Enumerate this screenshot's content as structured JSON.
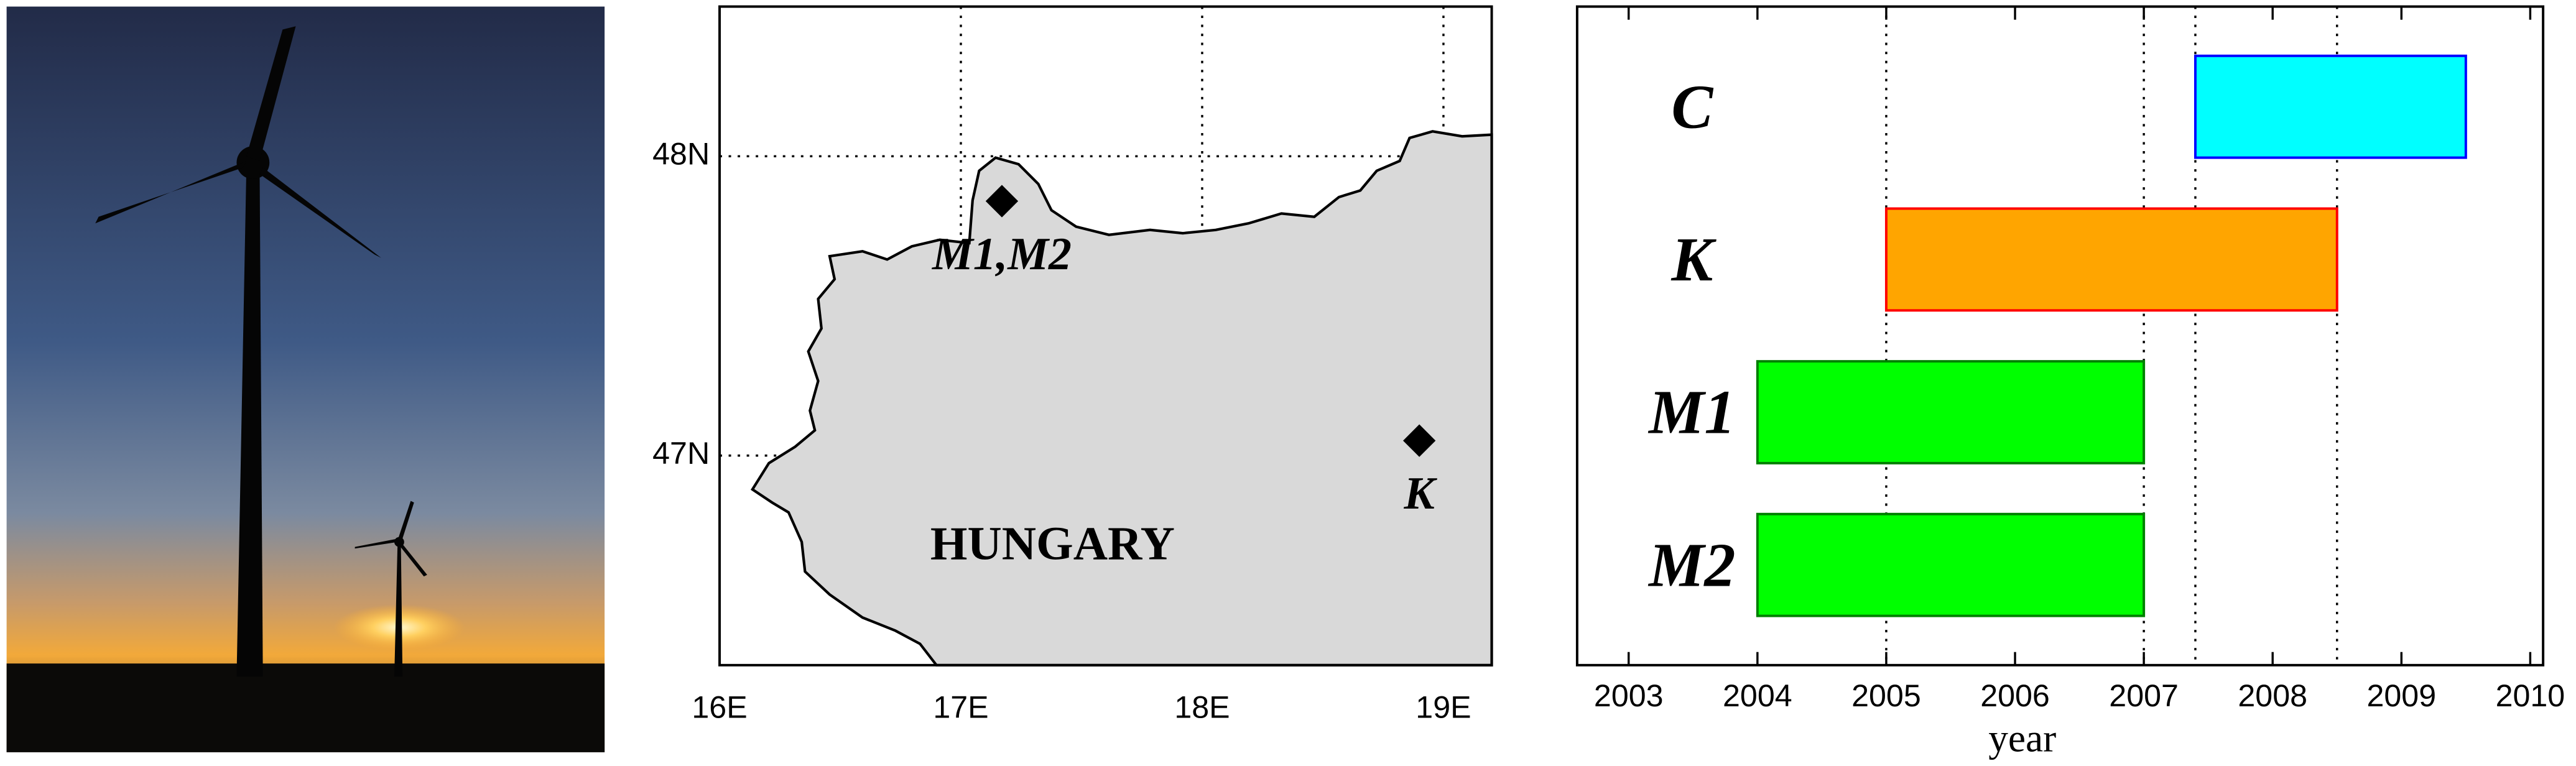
{
  "chart_data": [
    {
      "type": "map",
      "xlim": [
        16,
        19.2
      ],
      "ylim": [
        46.3,
        48.5
      ],
      "xticks": [
        {
          "value": 16,
          "label": "16E"
        },
        {
          "value": 17,
          "label": "17E"
        },
        {
          "value": 18,
          "label": "18E"
        },
        {
          "value": 19,
          "label": "19E"
        }
      ],
      "yticks": [
        {
          "value": 47,
          "label": "47N"
        },
        {
          "value": 48,
          "label": "48N"
        }
      ],
      "grid": true,
      "region_label": "HUNGARY",
      "region_label_color": "#5e1750",
      "land_color": "#d9d9d9",
      "sites": [
        {
          "label": "M1,M2",
          "lon": 17.17,
          "lat": 47.85,
          "color": "#008000"
        },
        {
          "label": "K",
          "lon": 18.9,
          "lat": 47.05,
          "color": "#ff0000"
        }
      ]
    },
    {
      "type": "range-bar",
      "categories": [
        "C",
        "K",
        "M1",
        "M2"
      ],
      "start": [
        2007.4,
        2005,
        2004,
        2004
      ],
      "end": [
        2009.5,
        2008.5,
        2007,
        2007
      ],
      "fill_colors": [
        "#00ffff",
        "#ffa500",
        "#00ff00",
        "#00ff00"
      ],
      "edge_colors": [
        "#0000ff",
        "#ff0000",
        "#008000",
        "#008000"
      ],
      "label_colors": [
        "#0000ff",
        "#ff0000",
        "#008000",
        "#008000"
      ],
      "xlim": [
        2002.6,
        2010.1
      ],
      "xticks": [
        2003,
        2004,
        2005,
        2006,
        2007,
        2008,
        2009,
        2010
      ],
      "xlabel": "year",
      "reference_lines": [
        2005,
        2007,
        2007.4,
        2008.5
      ]
    }
  ]
}
